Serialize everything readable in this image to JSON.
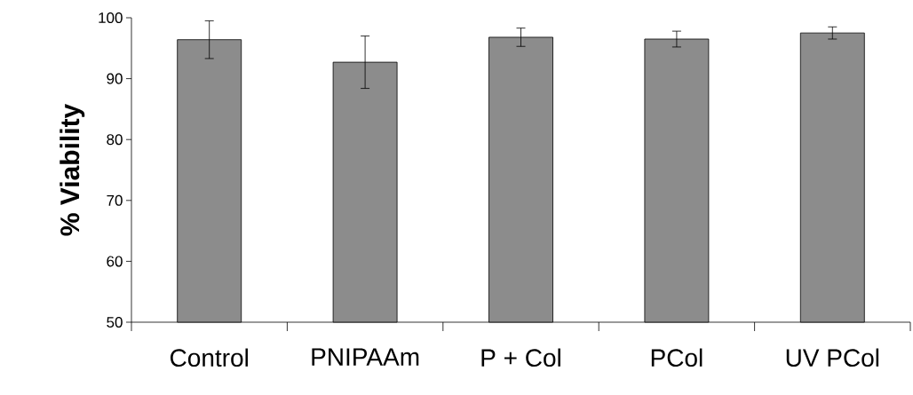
{
  "chart_data": {
    "type": "bar",
    "ylabel": "% Viability",
    "categories": [
      "Control",
      "PNIPAAm",
      "P + Col",
      "PCol",
      "UV PCol"
    ],
    "values": [
      96.4,
      92.7,
      96.8,
      96.5,
      97.5
    ],
    "errors": [
      3.1,
      4.3,
      1.5,
      1.3,
      1.0
    ],
    "color": "#8c8c8c",
    "ylim": [
      50,
      100
    ],
    "yticks": [
      50,
      60,
      70,
      80,
      90,
      100
    ],
    "grid": false
  }
}
